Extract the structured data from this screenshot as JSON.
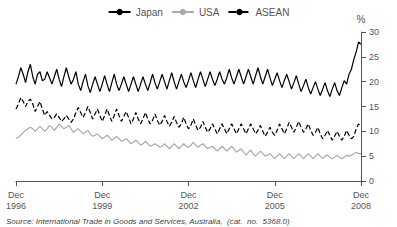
{
  "chart_data": {
    "type": "line",
    "ylabel": "%",
    "annotations": [
      "Source: International Trade in Goods and Services, Australia,  (cat.  no.  5368.0)"
    ],
    "categories": [
      "Dec\n1996",
      null,
      null,
      null,
      null,
      null,
      null,
      null,
      null,
      null,
      null,
      null,
      null,
      null,
      null,
      null,
      null,
      null,
      null,
      null,
      null,
      null,
      null,
      null,
      null,
      null,
      null,
      null,
      null,
      null,
      null,
      null,
      null,
      null,
      null,
      null,
      "Dec\n1999",
      null,
      null,
      null,
      null,
      null,
      null,
      null,
      null,
      null,
      null,
      null,
      null,
      null,
      null,
      null,
      null,
      null,
      null,
      null,
      null,
      null,
      null,
      null,
      null,
      null,
      null,
      null,
      null,
      null,
      null,
      null,
      null,
      null,
      null,
      null,
      "Dec\n2002",
      null,
      null,
      null,
      null,
      null,
      null,
      null,
      null,
      null,
      null,
      null,
      null,
      null,
      null,
      null,
      null,
      null,
      null,
      null,
      null,
      null,
      null,
      null,
      null,
      null,
      null,
      null,
      null,
      null,
      null,
      null,
      null,
      null,
      null,
      null,
      "Dec\n2005",
      null,
      null,
      null,
      null,
      null,
      null,
      null,
      null,
      null,
      null,
      null,
      null,
      null,
      null,
      null,
      null,
      null,
      null,
      null,
      null,
      null,
      null,
      null,
      null,
      null,
      null,
      null,
      null,
      null,
      null,
      null,
      null,
      null,
      null,
      null,
      "Dec\n2008"
    ],
    "series": [
      {
        "name": "Japan",
        "color": "#000000",
        "line_style": "solid",
        "values": [
          19.5,
          21.0,
          22.8,
          21.5,
          19.8,
          22.0,
          23.5,
          21.0,
          19.5,
          21.5,
          22.0,
          20.2,
          20.5,
          22.0,
          20.8,
          19.5,
          21.0,
          22.5,
          20.5,
          19.0,
          21.0,
          22.8,
          21.0,
          19.5,
          20.5,
          22.0,
          19.5,
          18.2,
          20.0,
          21.5,
          19.2,
          17.8,
          19.5,
          21.0,
          19.5,
          18.0,
          19.5,
          21.2,
          19.5,
          18.0,
          19.8,
          21.5,
          19.5,
          18.2,
          19.5,
          21.0,
          19.5,
          18.0,
          19.5,
          21.0,
          19.5,
          18.0,
          19.5,
          21.0,
          19.5,
          18.2,
          19.8,
          21.5,
          19.8,
          18.5,
          20.0,
          21.5,
          20.0,
          18.5,
          20.2,
          21.8,
          20.0,
          18.5,
          20.0,
          21.5,
          20.0,
          18.8,
          20.2,
          21.8,
          20.2,
          18.8,
          20.5,
          22.0,
          20.5,
          19.0,
          20.5,
          22.0,
          20.5,
          19.2,
          20.5,
          22.0,
          20.5,
          19.5,
          20.8,
          22.5,
          20.8,
          19.5,
          21.0,
          22.5,
          21.0,
          19.5,
          21.0,
          22.5,
          21.0,
          19.5,
          21.2,
          22.8,
          21.0,
          19.5,
          21.0,
          22.5,
          20.8,
          19.2,
          20.5,
          21.8,
          20.2,
          18.8,
          20.2,
          21.5,
          20.0,
          18.5,
          19.8,
          21.2,
          19.5,
          18.0,
          19.2,
          20.5,
          18.8,
          17.5,
          18.8,
          20.0,
          18.5,
          17.2,
          18.5,
          19.8,
          18.2,
          17.0,
          18.5,
          19.8,
          18.2,
          17.2,
          18.8,
          20.2,
          19.5,
          21.5,
          22.5,
          24.5,
          26.0,
          28.0,
          27.5
        ]
      },
      {
        "name": "USA",
        "color": "#aaaaaa",
        "line_style": "solid",
        "values": [
          8.5,
          8.8,
          9.2,
          9.8,
          10.2,
          10.5,
          10.8,
          10.5,
          10.0,
          10.5,
          11.0,
          10.5,
          10.0,
          10.5,
          11.2,
          10.8,
          10.2,
          10.8,
          11.5,
          11.0,
          10.5,
          10.8,
          11.2,
          10.5,
          9.8,
          10.2,
          10.5,
          10.0,
          9.5,
          9.8,
          10.2,
          9.5,
          9.0,
          9.2,
          9.5,
          9.0,
          8.5,
          8.8,
          9.2,
          8.8,
          8.2,
          8.5,
          9.0,
          8.5,
          8.0,
          8.2,
          8.5,
          8.0,
          7.5,
          7.8,
          8.2,
          7.8,
          7.2,
          7.5,
          8.0,
          7.5,
          7.0,
          7.2,
          7.5,
          7.2,
          6.8,
          7.0,
          7.5,
          7.0,
          6.5,
          7.0,
          7.5,
          7.0,
          6.5,
          7.0,
          7.5,
          7.0,
          6.8,
          7.2,
          7.8,
          7.2,
          6.8,
          7.2,
          7.5,
          7.0,
          6.5,
          6.8,
          7.0,
          6.5,
          6.0,
          6.5,
          7.0,
          6.5,
          6.0,
          6.5,
          7.0,
          6.5,
          5.8,
          6.2,
          6.5,
          5.8,
          5.2,
          5.8,
          6.2,
          5.5,
          5.0,
          5.5,
          6.0,
          5.5,
          5.0,
          5.2,
          5.5,
          5.0,
          4.5,
          5.0,
          5.5,
          5.0,
          4.5,
          5.0,
          5.5,
          5.0,
          4.5,
          5.0,
          5.5,
          5.0,
          4.5,
          5.0,
          5.5,
          5.0,
          4.5,
          5.0,
          5.5,
          5.0,
          4.5,
          5.0,
          5.2,
          4.8,
          4.5,
          4.8,
          5.2,
          4.8,
          4.5,
          4.8,
          5.2,
          5.0,
          5.2,
          5.5,
          5.8,
          5.5,
          5.5
        ]
      },
      {
        "name": "ASEAN",
        "color": "#000000",
        "line_style": "dashed",
        "values": [
          14.5,
          15.5,
          16.8,
          16.0,
          15.0,
          16.0,
          16.5,
          15.5,
          14.0,
          15.0,
          16.0,
          14.5,
          13.2,
          14.0,
          13.2,
          12.5,
          12.8,
          13.5,
          12.8,
          12.0,
          12.5,
          13.2,
          12.5,
          11.8,
          12.5,
          13.8,
          14.8,
          13.8,
          12.8,
          13.8,
          15.0,
          13.8,
          12.5,
          13.5,
          14.5,
          13.2,
          12.0,
          13.2,
          14.5,
          13.2,
          12.0,
          13.2,
          14.5,
          13.2,
          12.0,
          13.0,
          14.0,
          12.8,
          11.5,
          12.5,
          13.8,
          12.5,
          11.5,
          12.5,
          13.8,
          12.5,
          11.5,
          12.2,
          13.5,
          12.2,
          11.2,
          12.0,
          13.2,
          12.0,
          11.0,
          11.8,
          13.0,
          11.8,
          10.8,
          11.5,
          12.8,
          11.5,
          10.5,
          11.2,
          12.5,
          11.2,
          10.2,
          10.8,
          12.0,
          10.8,
          9.8,
          10.5,
          11.5,
          10.5,
          9.5,
          10.5,
          11.5,
          10.5,
          9.5,
          10.5,
          11.5,
          10.5,
          9.5,
          10.5,
          11.5,
          10.5,
          9.5,
          10.5,
          11.5,
          10.5,
          9.5,
          10.2,
          11.2,
          10.0,
          9.0,
          9.8,
          10.8,
          9.8,
          9.2,
          10.2,
          11.5,
          10.5,
          9.5,
          10.5,
          11.8,
          10.8,
          9.8,
          10.8,
          12.0,
          10.8,
          9.8,
          10.5,
          11.5,
          10.2,
          9.2,
          9.8,
          10.8,
          9.5,
          8.5,
          9.2,
          10.2,
          9.2,
          8.2,
          9.0,
          10.0,
          9.0,
          8.2,
          9.0,
          10.2,
          9.2,
          8.5,
          9.0,
          10.5,
          11.5,
          11.0
        ]
      }
    ],
    "ylim": [
      0,
      30
    ],
    "yticks": [
      0,
      5,
      10,
      15,
      20,
      25,
      30
    ],
    "grid": false,
    "legend": "upper center"
  }
}
